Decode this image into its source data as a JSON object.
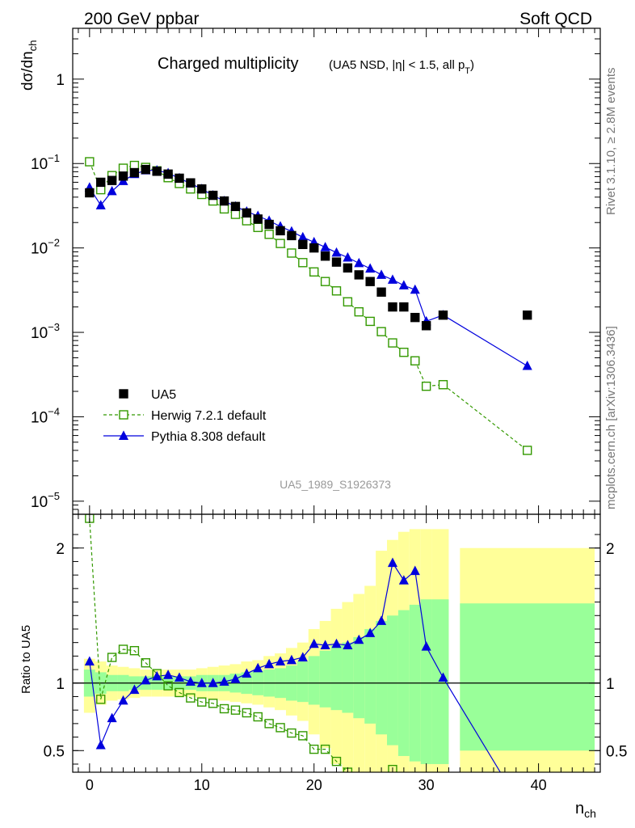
{
  "header": {
    "left": "200 GeV ppbar",
    "right": "Soft QCD"
  },
  "side_labels": {
    "rivet": "Rivet 3.1.10, ≥ 2.8M events",
    "mcplots": "mcplots.cern.ch [arXiv:1306.3436]"
  },
  "colors": {
    "data": "#000000",
    "herwig": "#339900",
    "pythia": "#0000dd",
    "band_inner": "#99ff99",
    "band_outer": "#ffff99"
  },
  "chart_data": [
    {
      "type": "scatter",
      "title": "Charged multiplicity",
      "subtitle": "(UA5 NSD, |η| < 1.5, all p",
      "subtitle_sub": "T",
      "subtitle_end": ")",
      "ylabel": "dσ/dn",
      "ylabel_sub": "ch",
      "yscale": "log",
      "xlim": [
        -1.5,
        45.5
      ],
      "ylim": [
        7e-06,
        4
      ],
      "yticks": [
        {
          "v": 1,
          "m": "1",
          "e": ""
        },
        {
          "v": 0.1,
          "m": "10",
          "e": "−1"
        },
        {
          "v": 0.01,
          "m": "10",
          "e": "−2"
        },
        {
          "v": 0.001,
          "m": "10",
          "e": "−3"
        },
        {
          "v": 0.0001,
          "m": "10",
          "e": "−4"
        },
        {
          "v": 1e-05,
          "m": "10",
          "e": "−5"
        }
      ],
      "watermark": "UA5_1989_S1926373",
      "legend": [
        {
          "label": "UA5",
          "style": "data"
        },
        {
          "label": "Herwig 7.2.1 default",
          "style": "herwig"
        },
        {
          "label": "Pythia 8.308 default",
          "style": "pythia"
        }
      ],
      "series": [
        {
          "name": "UA5",
          "x": [
            0,
            1,
            2,
            3,
            4,
            5,
            6,
            7,
            8,
            9,
            10,
            11,
            12,
            13,
            14,
            15,
            16,
            17,
            18,
            19,
            20,
            21,
            22,
            23,
            24,
            25,
            26,
            27,
            28,
            29,
            30,
            31.5,
            39
          ],
          "y": [
            0.045,
            0.06,
            0.063,
            0.071,
            0.078,
            0.085,
            0.081,
            0.075,
            0.067,
            0.059,
            0.05,
            0.042,
            0.036,
            0.031,
            0.026,
            0.022,
            0.019,
            0.016,
            0.014,
            0.011,
            0.01,
            0.008,
            0.0068,
            0.0058,
            0.0048,
            0.004,
            0.003,
            0.002,
            0.002,
            0.0015,
            0.0012,
            0.0016,
            0.0016
          ]
        },
        {
          "name": "Herwig 7.2.1 default",
          "x": [
            0,
            1,
            2,
            3,
            4,
            5,
            6,
            7,
            8,
            9,
            10,
            11,
            12,
            13,
            14,
            15,
            16,
            17,
            18,
            19,
            20,
            21,
            22,
            23,
            24,
            25,
            26,
            27,
            28,
            29,
            30,
            31.5,
            39
          ],
          "y": [
            0.105,
            0.049,
            0.072,
            0.088,
            0.095,
            0.09,
            0.082,
            0.068,
            0.058,
            0.05,
            0.043,
            0.036,
            0.029,
            0.025,
            0.021,
            0.0175,
            0.0145,
            0.0113,
            0.0087,
            0.0067,
            0.0052,
            0.004,
            0.0031,
            0.0023,
            0.00175,
            0.00135,
            0.00102,
            0.00075,
            0.00058,
            0.00046,
            0.00023,
            0.00024,
            4e-05
          ]
        },
        {
          "name": "Pythia 8.308 default",
          "x": [
            0,
            1,
            2,
            3,
            4,
            5,
            6,
            7,
            8,
            9,
            10,
            11,
            12,
            13,
            14,
            15,
            16,
            17,
            18,
            19,
            20,
            21,
            22,
            23,
            24,
            25,
            26,
            27,
            28,
            29,
            30,
            31.5,
            39
          ],
          "y": [
            0.052,
            0.032,
            0.047,
            0.062,
            0.075,
            0.083,
            0.083,
            0.077,
            0.067,
            0.058,
            0.05,
            0.042,
            0.036,
            0.031,
            0.027,
            0.024,
            0.021,
            0.018,
            0.0157,
            0.0134,
            0.0117,
            0.0102,
            0.0088,
            0.0077,
            0.0066,
            0.0057,
            0.0048,
            0.0042,
            0.0036,
            0.0032,
            0.00135,
            0.0016,
            0.0004
          ]
        }
      ]
    },
    {
      "type": "scatter",
      "ylabel": "Ratio to UA5",
      "xlabel": "n",
      "xlabel_sub": "ch",
      "xlim": [
        -1.5,
        45.5
      ],
      "ylim": [
        0.34,
        2.25
      ],
      "xticks": [
        0,
        10,
        20,
        30,
        40
      ],
      "yticks": [
        {
          "v": 0.5,
          "label": "0.5"
        },
        {
          "v": 1,
          "label": "1"
        },
        {
          "v": 2,
          "label": "2"
        }
      ],
      "bands": [
        {
          "x0": -0.5,
          "x1": 0.5,
          "inner": [
            0.9,
            1.1
          ],
          "outer": [
            0.78,
            1.18
          ]
        },
        {
          "x0": 0.5,
          "x1": 1.5,
          "inner": [
            0.92,
            1.08
          ],
          "outer": [
            0.84,
            1.16
          ]
        },
        {
          "x0": 1.5,
          "x1": 2.5,
          "inner": [
            0.94,
            1.06
          ],
          "outer": [
            0.87,
            1.13
          ]
        },
        {
          "x0": 2.5,
          "x1": 3.5,
          "inner": [
            0.94,
            1.06
          ],
          "outer": [
            0.88,
            1.12
          ]
        },
        {
          "x0": 3.5,
          "x1": 4.5,
          "inner": [
            0.95,
            1.05
          ],
          "outer": [
            0.89,
            1.11
          ]
        },
        {
          "x0": 4.5,
          "x1": 5.5,
          "inner": [
            0.95,
            1.05
          ],
          "outer": [
            0.9,
            1.1
          ]
        },
        {
          "x0": 5.5,
          "x1": 6.5,
          "inner": [
            0.95,
            1.05
          ],
          "outer": [
            0.9,
            1.1
          ]
        },
        {
          "x0": 6.5,
          "x1": 7.5,
          "inner": [
            0.95,
            1.05
          ],
          "outer": [
            0.9,
            1.1
          ]
        },
        {
          "x0": 7.5,
          "x1": 8.5,
          "inner": [
            0.95,
            1.05
          ],
          "outer": [
            0.9,
            1.1
          ]
        },
        {
          "x0": 8.5,
          "x1": 9.5,
          "inner": [
            0.95,
            1.05
          ],
          "outer": [
            0.9,
            1.1
          ]
        },
        {
          "x0": 9.5,
          "x1": 10.5,
          "inner": [
            0.94,
            1.06
          ],
          "outer": [
            0.89,
            1.11
          ]
        },
        {
          "x0": 10.5,
          "x1": 11.5,
          "inner": [
            0.94,
            1.06
          ],
          "outer": [
            0.88,
            1.12
          ]
        },
        {
          "x0": 11.5,
          "x1": 12.5,
          "inner": [
            0.94,
            1.06
          ],
          "outer": [
            0.87,
            1.13
          ]
        },
        {
          "x0": 12.5,
          "x1": 13.5,
          "inner": [
            0.93,
            1.07
          ],
          "outer": [
            0.86,
            1.14
          ]
        },
        {
          "x0": 13.5,
          "x1": 14.5,
          "inner": [
            0.92,
            1.08
          ],
          "outer": [
            0.85,
            1.16
          ]
        },
        {
          "x0": 14.5,
          "x1": 15.5,
          "inner": [
            0.91,
            1.09
          ],
          "outer": [
            0.84,
            1.17
          ]
        },
        {
          "x0": 15.5,
          "x1": 16.5,
          "inner": [
            0.9,
            1.1
          ],
          "outer": [
            0.82,
            1.2
          ]
        },
        {
          "x0": 16.5,
          "x1": 17.5,
          "inner": [
            0.89,
            1.11
          ],
          "outer": [
            0.8,
            1.22
          ]
        },
        {
          "x0": 17.5,
          "x1": 18.5,
          "inner": [
            0.87,
            1.13
          ],
          "outer": [
            0.76,
            1.26
          ]
        },
        {
          "x0": 18.5,
          "x1": 19.5,
          "inner": [
            0.86,
            1.16
          ],
          "outer": [
            0.72,
            1.3
          ]
        },
        {
          "x0": 19.5,
          "x1": 20.5,
          "inner": [
            0.84,
            1.2
          ],
          "outer": [
            0.62,
            1.4
          ]
        },
        {
          "x0": 20.5,
          "x1": 21.5,
          "inner": [
            0.82,
            1.24
          ],
          "outer": [
            0.52,
            1.46
          ]
        },
        {
          "x0": 21.5,
          "x1": 22.5,
          "inner": [
            0.8,
            1.28
          ],
          "outer": [
            0.4,
            1.55
          ]
        },
        {
          "x0": 22.5,
          "x1": 23.5,
          "inner": [
            0.78,
            1.3
          ],
          "outer": [
            0.34,
            1.6
          ]
        },
        {
          "x0": 23.5,
          "x1": 24.5,
          "inner": [
            0.74,
            1.34
          ],
          "outer": [
            0.34,
            1.66
          ]
        },
        {
          "x0": 24.5,
          "x1": 25.5,
          "inner": [
            0.7,
            1.4
          ],
          "outer": [
            0.34,
            1.72
          ]
        },
        {
          "x0": 25.5,
          "x1": 26.5,
          "inner": [
            0.62,
            1.46
          ],
          "outer": [
            0.34,
            1.98
          ]
        },
        {
          "x0": 26.5,
          "x1": 27.5,
          "inner": [
            0.54,
            1.5
          ],
          "outer": [
            0.34,
            2.06
          ]
        },
        {
          "x0": 27.5,
          "x1": 28.5,
          "inner": [
            0.46,
            1.54
          ],
          "outer": [
            0.34,
            2.12
          ]
        },
        {
          "x0": 28.5,
          "x1": 29.5,
          "inner": [
            0.42,
            1.58
          ],
          "outer": [
            0.34,
            2.14
          ]
        },
        {
          "x0": 29.5,
          "x1": 30.5,
          "inner": [
            0.4,
            1.62
          ],
          "outer": [
            0.34,
            2.14
          ]
        },
        {
          "x0": 30.5,
          "x1": 31.5,
          "inner": [
            0.4,
            1.62
          ],
          "outer": [
            0.34,
            2.14
          ]
        },
        {
          "x0": 31.5,
          "x1": 32.0,
          "inner": [
            0.4,
            1.62
          ],
          "outer": [
            0.34,
            2.14
          ]
        },
        {
          "x0": 33.0,
          "x1": 45.0,
          "inner": [
            0.5,
            1.59
          ],
          "outer": [
            0.34,
            2.0
          ]
        }
      ],
      "series": [
        {
          "name": "Herwig 7.2.1 default",
          "x": [
            0,
            1,
            2,
            3,
            4,
            5,
            6,
            7,
            8,
            9,
            10,
            11,
            12,
            13,
            14,
            15,
            16,
            17,
            18,
            19,
            20,
            21,
            22,
            23,
            27
          ],
          "y": [
            2.22,
            0.88,
            1.19,
            1.25,
            1.24,
            1.15,
            1.07,
            0.98,
            0.93,
            0.89,
            0.86,
            0.85,
            0.81,
            0.8,
            0.78,
            0.75,
            0.7,
            0.67,
            0.63,
            0.61,
            0.51,
            0.51,
            0.42,
            0.34,
            0.36
          ]
        },
        {
          "name": "Pythia 8.308 default",
          "x": [
            0,
            1,
            2,
            3,
            4,
            5,
            6,
            7,
            8,
            9,
            10,
            11,
            12,
            13,
            14,
            15,
            16,
            17,
            18,
            19,
            20,
            21,
            22,
            23,
            24,
            25,
            26,
            27,
            28,
            29,
            30,
            31.5,
            36.6
          ],
          "y": [
            1.16,
            0.54,
            0.74,
            0.87,
            0.95,
            1.02,
            1.05,
            1.06,
            1.04,
            1.01,
            1.0,
            1.0,
            1.01,
            1.03,
            1.07,
            1.11,
            1.14,
            1.16,
            1.17,
            1.19,
            1.29,
            1.28,
            1.29,
            1.28,
            1.32,
            1.37,
            1.46,
            1.89,
            1.76,
            1.83,
            1.27,
            1.04,
            0.34
          ]
        }
      ]
    }
  ]
}
